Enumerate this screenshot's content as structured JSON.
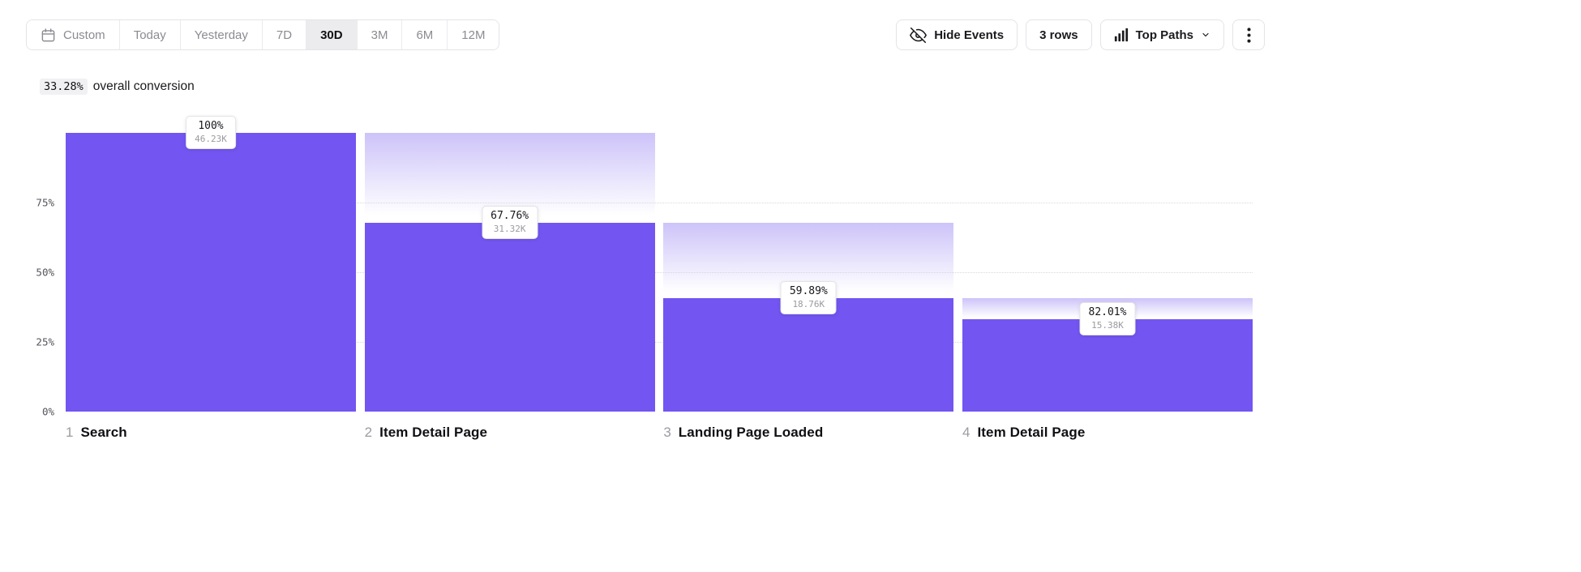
{
  "toolbar": {
    "date_ranges": [
      {
        "label": "Custom",
        "selected": false,
        "has_icon": true
      },
      {
        "label": "Today",
        "selected": false,
        "has_icon": false
      },
      {
        "label": "Yesterday",
        "selected": false,
        "has_icon": false
      },
      {
        "label": "7D",
        "selected": false,
        "has_icon": false
      },
      {
        "label": "30D",
        "selected": true,
        "has_icon": false
      },
      {
        "label": "3M",
        "selected": false,
        "has_icon": false
      },
      {
        "label": "6M",
        "selected": false,
        "has_icon": false
      },
      {
        "label": "12M",
        "selected": false,
        "has_icon": false
      }
    ],
    "hide_events_label": "Hide Events",
    "rows_label": "3 rows",
    "top_paths_label": "Top Paths"
  },
  "summary": {
    "value": "33.28%",
    "text": "overall conversion"
  },
  "chart_data": {
    "type": "bar",
    "subtype": "funnel",
    "title": "",
    "overall_conversion": "33.28%",
    "yticks": [
      {
        "label": "75%",
        "pct": 75
      },
      {
        "label": "50%",
        "pct": 50
      },
      {
        "label": "25%",
        "pct": 25
      },
      {
        "label": "0%",
        "pct": 0
      }
    ],
    "gridlines_pct": [
      75,
      50,
      25
    ],
    "ylim": [
      0,
      100
    ],
    "steps": [
      {
        "index": "1",
        "name": "Search",
        "conversion_label": "100%",
        "count_label": "46.23K",
        "overall_pct": 100,
        "prev_overall_pct": 100
      },
      {
        "index": "2",
        "name": "Item Detail Page",
        "conversion_label": "67.76%",
        "count_label": "31.32K",
        "overall_pct": 67.76,
        "prev_overall_pct": 100
      },
      {
        "index": "3",
        "name": "Landing Page Loaded",
        "conversion_label": "59.89%",
        "count_label": "18.76K",
        "overall_pct": 40.58,
        "prev_overall_pct": 67.76
      },
      {
        "index": "4",
        "name": "Item Detail Page",
        "conversion_label": "82.01%",
        "count_label": "15.38K",
        "overall_pct": 33.27,
        "prev_overall_pct": 40.58
      }
    ],
    "colors": {
      "bar": "#7355f1",
      "gradient_top": "#cdc3f9"
    }
  }
}
